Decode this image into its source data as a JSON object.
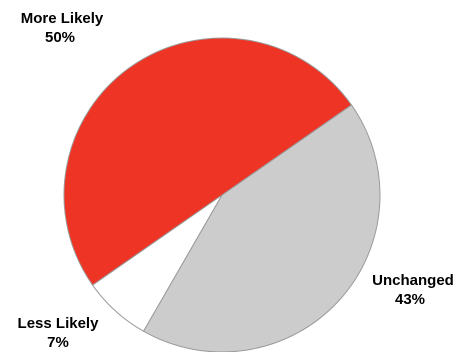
{
  "chart_data": {
    "type": "pie",
    "title": "",
    "legend": "none",
    "start_angle_deg": 35,
    "direction": "clockwise",
    "slices": [
      {
        "label": "Unchanged",
        "value": 43,
        "value_label": "43%",
        "color": "#cccccc"
      },
      {
        "label": "Less Likely",
        "value": 7,
        "value_label": "7%",
        "color": "#ffffff"
      },
      {
        "label": "More Likely",
        "value": 50,
        "value_label": "50%",
        "color": "#ee3424"
      }
    ]
  },
  "style": {
    "slice_stroke": "#9a9a9a"
  }
}
